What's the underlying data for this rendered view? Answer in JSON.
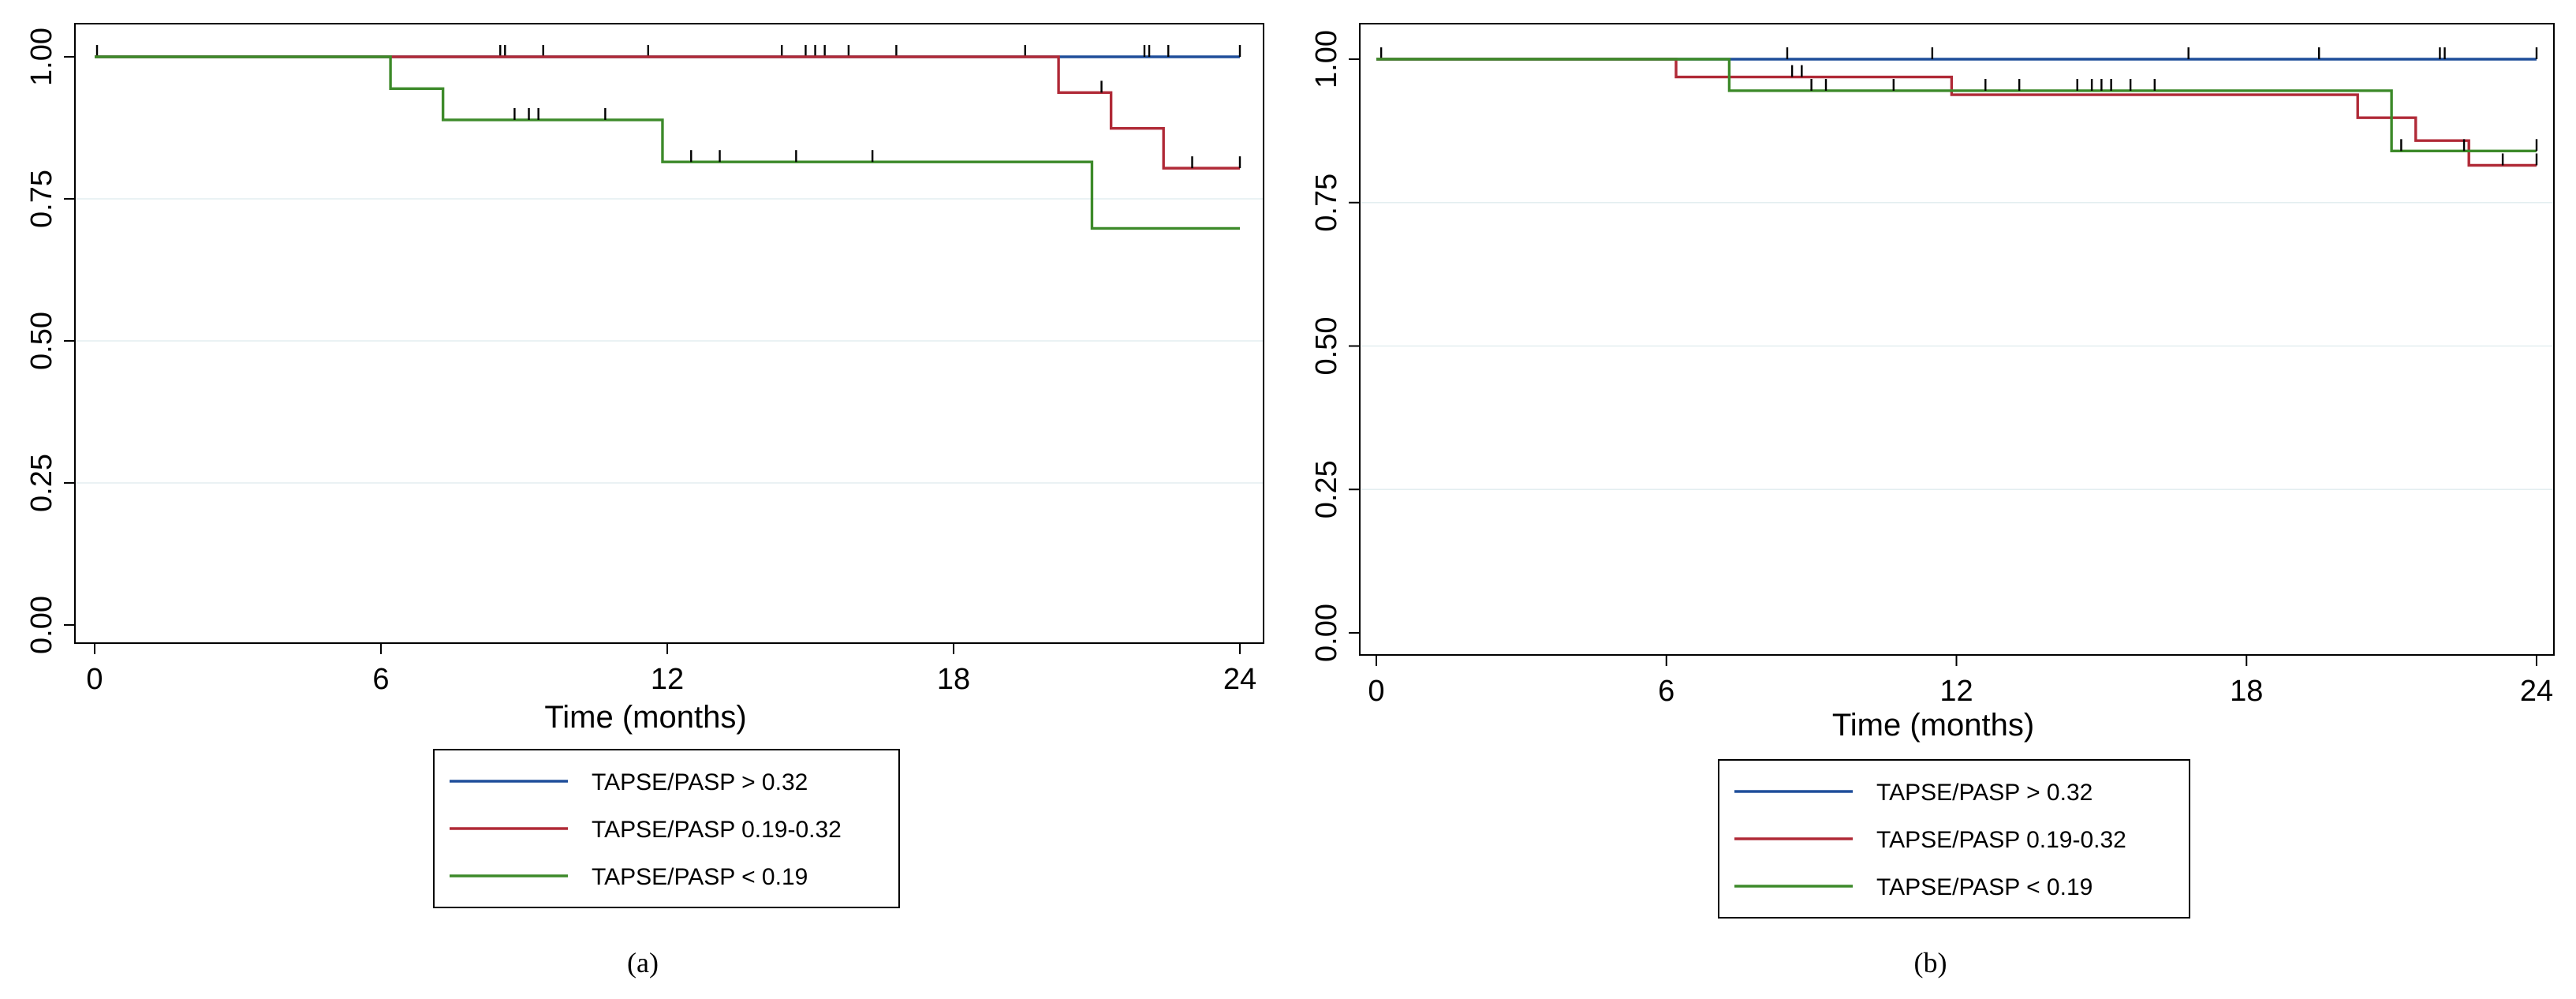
{
  "chart_data": [
    {
      "type": "line",
      "subtype": "kaplan-meier",
      "caption": "(a)",
      "xlabel": "Time (months)",
      "ylabel": "",
      "xlim": [
        0,
        24
      ],
      "ylim": [
        0,
        1
      ],
      "xticks": [
        "0",
        "6",
        "12",
        "18",
        "24"
      ],
      "yticks": [
        "0.00",
        "0.25",
        "0.50",
        "0.75",
        "1.00"
      ],
      "ygrid": [
        0.25,
        0.5,
        0.75
      ],
      "legend": [
        "TAPSE/PASP > 0.32",
        "TAPSE/PASP 0.19-0.32",
        "TAPSE/PASP < 0.19"
      ],
      "series": [
        {
          "name": "TAPSE/PASP > 0.32",
          "color": "#1f4e9a",
          "steps": [
            [
              0,
              1.0
            ],
            [
              24,
              1.0
            ]
          ],
          "censored": [
            [
              0.05,
              1.0
            ],
            [
              8.5,
              1.0
            ],
            [
              8.6,
              1.0
            ],
            [
              9.4,
              1.0
            ],
            [
              11.6,
              1.0
            ],
            [
              14.4,
              1.0
            ],
            [
              14.9,
              1.0
            ],
            [
              15.1,
              1.0
            ],
            [
              15.3,
              1.0
            ],
            [
              15.8,
              1.0
            ],
            [
              16.8,
              1.0
            ],
            [
              19.5,
              1.0
            ],
            [
              22.0,
              1.0
            ],
            [
              22.1,
              1.0
            ],
            [
              22.5,
              1.0
            ],
            [
              24.0,
              1.0
            ]
          ]
        },
        {
          "name": "TAPSE/PASP 0.19-0.32",
          "color": "#b02a37",
          "steps": [
            [
              0,
              1.0
            ],
            [
              20.2,
              0.937
            ],
            [
              21.3,
              0.874
            ],
            [
              22.4,
              0.804
            ],
            [
              24,
              0.804
            ]
          ],
          "censored": [
            [
              21.1,
              0.937
            ],
            [
              23.0,
              0.804
            ],
            [
              24.0,
              0.804
            ]
          ]
        },
        {
          "name": "TAPSE/PASP < 0.19",
          "color": "#3d8a2a",
          "steps": [
            [
              0,
              1.0
            ],
            [
              6.2,
              0.944
            ],
            [
              7.3,
              0.889
            ],
            [
              11.9,
              0.815
            ],
            [
              20.9,
              0.698
            ],
            [
              24,
              0.698
            ]
          ],
          "censored": [
            [
              8.8,
              0.889
            ],
            [
              9.1,
              0.889
            ],
            [
              9.3,
              0.889
            ],
            [
              10.7,
              0.889
            ],
            [
              12.5,
              0.815
            ],
            [
              13.1,
              0.815
            ],
            [
              14.7,
              0.815
            ],
            [
              16.3,
              0.815
            ]
          ]
        }
      ]
    },
    {
      "type": "line",
      "subtype": "kaplan-meier",
      "caption": "(b)",
      "xlabel": "Time (months)",
      "ylabel": "",
      "xlim": [
        0,
        24
      ],
      "ylim": [
        0,
        1
      ],
      "xticks": [
        "0",
        "6",
        "12",
        "18",
        "24"
      ],
      "yticks": [
        "0.00",
        "0.25",
        "0.50",
        "0.75",
        "1.00"
      ],
      "ygrid": [
        0.25,
        0.5,
        0.75
      ],
      "legend": [
        "TAPSE/PASP > 0.32",
        "TAPSE/PASP 0.19-0.32",
        "TAPSE/PASP < 0.19"
      ],
      "series": [
        {
          "name": "TAPSE/PASP > 0.32",
          "color": "#1f4e9a",
          "steps": [
            [
              0,
              1.0
            ],
            [
              24,
              1.0
            ]
          ],
          "censored": [
            [
              0.1,
              1.0
            ],
            [
              8.5,
              1.0
            ],
            [
              11.5,
              1.0
            ],
            [
              16.8,
              1.0
            ],
            [
              19.5,
              1.0
            ],
            [
              22.0,
              1.0
            ],
            [
              22.1,
              1.0
            ],
            [
              24.0,
              1.0
            ]
          ]
        },
        {
          "name": "TAPSE/PASP 0.19-0.32",
          "color": "#b02a37",
          "steps": [
            [
              0,
              1.0
            ],
            [
              6.2,
              0.969
            ],
            [
              11.9,
              0.938
            ],
            [
              20.3,
              0.898
            ],
            [
              21.5,
              0.858
            ],
            [
              22.6,
              0.815
            ],
            [
              24,
              0.815
            ]
          ],
          "censored": [
            [
              8.6,
              0.969
            ],
            [
              8.8,
              0.969
            ],
            [
              23.3,
              0.815
            ],
            [
              24.0,
              0.815
            ]
          ]
        },
        {
          "name": "TAPSE/PASP < 0.19",
          "color": "#3d8a2a",
          "steps": [
            [
              0,
              1.0
            ],
            [
              7.3,
              0.945
            ],
            [
              21.0,
              0.84
            ],
            [
              24,
              0.84
            ]
          ],
          "censored": [
            [
              9.0,
              0.945
            ],
            [
              9.3,
              0.945
            ],
            [
              10.7,
              0.945
            ],
            [
              12.6,
              0.945
            ],
            [
              13.3,
              0.945
            ],
            [
              14.5,
              0.945
            ],
            [
              14.8,
              0.945
            ],
            [
              15.0,
              0.945
            ],
            [
              15.2,
              0.945
            ],
            [
              15.6,
              0.945
            ],
            [
              16.1,
              0.945
            ],
            [
              21.2,
              0.84
            ],
            [
              22.5,
              0.84
            ],
            [
              24.0,
              0.84
            ]
          ]
        }
      ]
    }
  ]
}
